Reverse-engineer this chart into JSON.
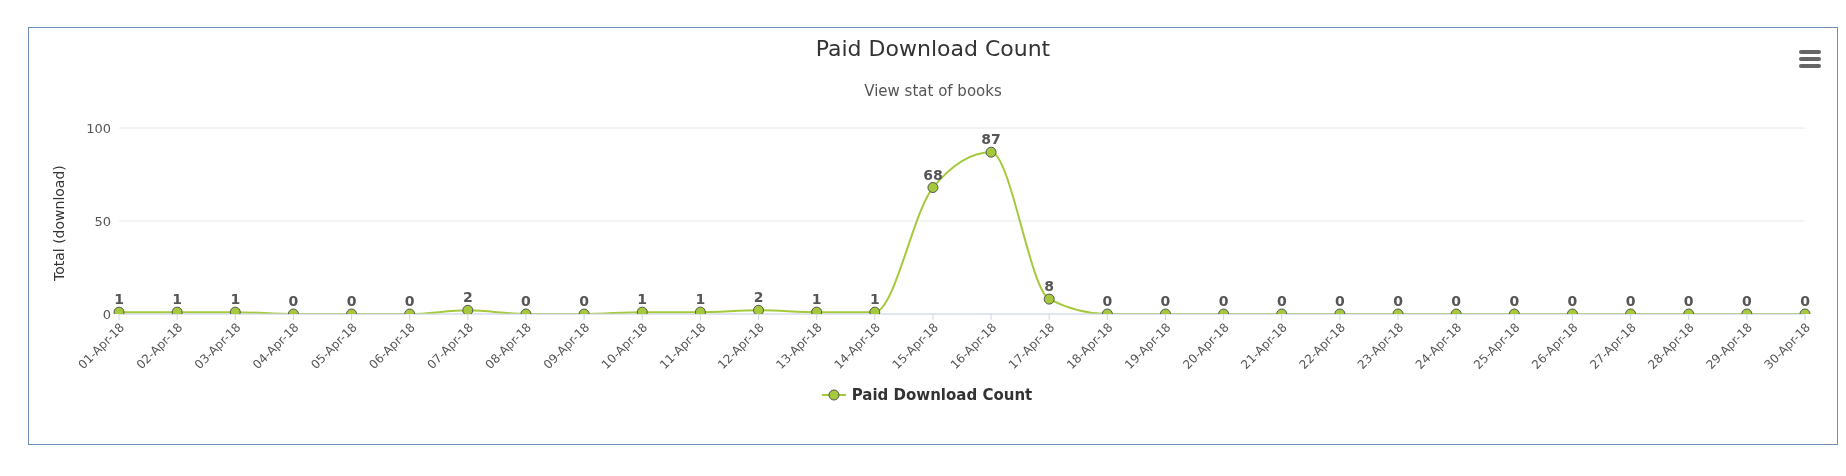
{
  "chart_data": {
    "type": "line",
    "title": "Paid Download Count",
    "subtitle": "View stat of books",
    "ylabel": "Total (download)",
    "categories": [
      "01-Apr-18",
      "02-Apr-18",
      "03-Apr-18",
      "04-Apr-18",
      "05-Apr-18",
      "06-Apr-18",
      "07-Apr-18",
      "08-Apr-18",
      "09-Apr-18",
      "10-Apr-18",
      "11-Apr-18",
      "12-Apr-18",
      "13-Apr-18",
      "14-Apr-18",
      "15-Apr-18",
      "16-Apr-18",
      "17-Apr-18",
      "18-Apr-18",
      "19-Apr-18",
      "20-Apr-18",
      "21-Apr-18",
      "22-Apr-18",
      "23-Apr-18",
      "24-Apr-18",
      "25-Apr-18",
      "26-Apr-18",
      "27-Apr-18",
      "28-Apr-18",
      "29-Apr-18",
      "30-Apr-18"
    ],
    "series": [
      {
        "name": "Paid Download Count",
        "color": "#a5c93b",
        "values": [
          1,
          1,
          1,
          0,
          0,
          0,
          2,
          0,
          0,
          1,
          1,
          2,
          1,
          1,
          68,
          87,
          8,
          0,
          0,
          0,
          0,
          0,
          0,
          0,
          0,
          0,
          0,
          0,
          0,
          0
        ]
      }
    ],
    "ylim": [
      0,
      100
    ],
    "yticks": [
      0,
      50,
      100
    ],
    "grid": "y",
    "legend": "bottom",
    "marker": "circle",
    "line_style": "solid",
    "data_labels": true
  }
}
